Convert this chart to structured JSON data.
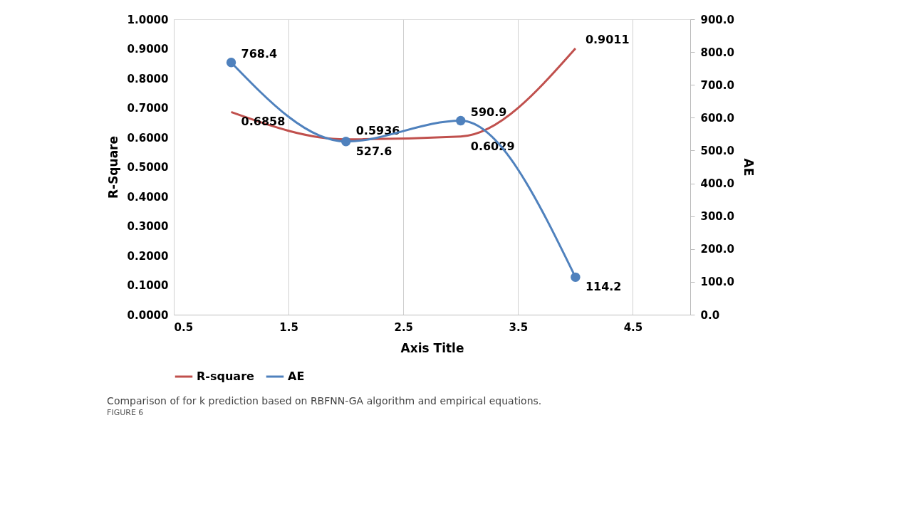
{
  "chart_data": {
    "type": "line",
    "xlabel": "Axis Title",
    "ylabel": "R-Square",
    "y2label": "AE",
    "x": [
      1,
      2,
      3,
      4
    ],
    "series": [
      {
        "name": "R-square",
        "color": "#c0504d",
        "values": [
          0.6858,
          0.5936,
          0.6029,
          0.9011
        ],
        "marker": "none"
      },
      {
        "name": "AE",
        "color": "#4f81bd",
        "values": [
          768.4,
          527.6,
          590.9,
          114.2
        ],
        "axis": "y2",
        "marker": "circle"
      }
    ],
    "xlim": [
      0.5,
      5.0
    ],
    "xticks": [
      0.5,
      1.5,
      2.5,
      3.5,
      4.5
    ],
    "ylim": [
      0,
      1
    ],
    "yticks": [
      {
        "value": 0,
        "label": "0.0000"
      },
      {
        "value": 0.1,
        "label": "0.1000"
      },
      {
        "value": 0.2,
        "label": "0.2000"
      },
      {
        "value": 0.3,
        "label": "0.3000"
      },
      {
        "value": 0.4,
        "label": "0.4000"
      },
      {
        "value": 0.5,
        "label": "0.5000"
      },
      {
        "value": 0.6,
        "label": "0.6000"
      },
      {
        "value": 0.7,
        "label": "0.7000"
      },
      {
        "value": 0.8,
        "label": "0.8000"
      },
      {
        "value": 0.9,
        "label": "0.9000"
      },
      {
        "value": 1,
        "label": "1.0000"
      }
    ],
    "y2lim": [
      0,
      900
    ],
    "y2ticks": [
      {
        "value": 0,
        "label": "0.0"
      },
      {
        "value": 100,
        "label": "100.0"
      },
      {
        "value": 200,
        "label": "200.0"
      },
      {
        "value": 300,
        "label": "300.0"
      },
      {
        "value": 400,
        "label": "400.0"
      },
      {
        "value": 500,
        "label": "500.0"
      },
      {
        "value": 600,
        "label": "600.0"
      },
      {
        "value": 700,
        "label": "700.0"
      },
      {
        "value": 800,
        "label": "800.0"
      },
      {
        "value": 900,
        "label": "900.0"
      }
    ],
    "grid": "x",
    "legend": "bottom",
    "data_labels": true,
    "annotations": [
      "FIGURE 6",
      "Comparison of for k prediction based on RBFNN-GA algorithm and empirical equations."
    ]
  }
}
